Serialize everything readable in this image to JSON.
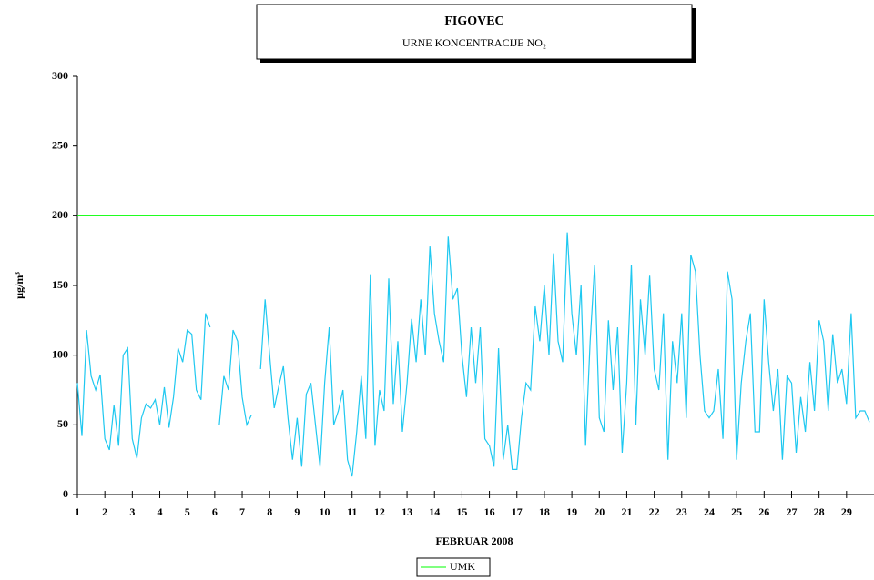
{
  "chart_data": {
    "type": "line",
    "title": "FIGOVEC",
    "subtitle": "URNE KONCENTRACIJE NO₂",
    "x_label": "FEBRUAR 2008",
    "y_label": "µg/m³",
    "xlim": [
      1,
      30
    ],
    "xticks": [
      1,
      2,
      3,
      4,
      5,
      6,
      7,
      8,
      9,
      10,
      11,
      12,
      13,
      14,
      15,
      16,
      17,
      18,
      19,
      20,
      21,
      22,
      23,
      24,
      25,
      26,
      27,
      28,
      29
    ],
    "ylim": [
      0,
      300
    ],
    "yticks": [
      0,
      50,
      100,
      150,
      200,
      250,
      300
    ],
    "threshold": {
      "name": "UMK",
      "value": 200,
      "color": "#00ff00"
    },
    "x": [
      1,
      1.1667,
      1.3333,
      1.5,
      1.6667,
      1.8333,
      2,
      2.1667,
      2.3333,
      2.5,
      2.6667,
      2.8333,
      3,
      3.1667,
      3.3333,
      3.5,
      3.6667,
      3.8333,
      4,
      4.1667,
      4.3333,
      4.5,
      4.6667,
      4.8333,
      5,
      5.1667,
      5.3333,
      5.5,
      5.6667,
      5.8333,
      6,
      6.1667,
      6.3333,
      6.5,
      6.6667,
      6.8333,
      7,
      7.1667,
      7.3333,
      7.5,
      7.6667,
      7.8333,
      8,
      8.1667,
      8.3333,
      8.5,
      8.6667,
      8.8333,
      9,
      9.1667,
      9.3333,
      9.5,
      9.6667,
      9.8333,
      10,
      10.1667,
      10.3333,
      10.5,
      10.6667,
      10.8333,
      11,
      11.1667,
      11.3333,
      11.5,
      11.6667,
      11.8333,
      12,
      12.1667,
      12.3333,
      12.5,
      12.6667,
      12.8333,
      13,
      13.1667,
      13.3333,
      13.5,
      13.6667,
      13.8333,
      14,
      14.1667,
      14.3333,
      14.5,
      14.6667,
      14.8333,
      15,
      15.1667,
      15.3333,
      15.5,
      15.6667,
      15.8333,
      16,
      16.1667,
      16.3333,
      16.5,
      16.6667,
      16.8333,
      17,
      17.1667,
      17.3333,
      17.5,
      17.6667,
      17.8333,
      18,
      18.1667,
      18.3333,
      18.5,
      18.6667,
      18.8333,
      19,
      19.1667,
      19.3333,
      19.5,
      19.6667,
      19.8333,
      20,
      20.1667,
      20.3333,
      20.5,
      20.6667,
      20.8333,
      21,
      21.1667,
      21.3333,
      21.5,
      21.6667,
      21.8333,
      22,
      22.1667,
      22.3333,
      22.5,
      22.6667,
      22.8333,
      23,
      23.1667,
      23.3333,
      23.5,
      23.6667,
      23.8333,
      24,
      24.1667,
      24.3333,
      24.5,
      24.6667,
      24.8333,
      25,
      25.1667,
      25.3333,
      25.5,
      25.6667,
      25.8333,
      26,
      26.1667,
      26.3333,
      26.5,
      26.6667,
      26.8333,
      27,
      27.1667,
      27.3333,
      27.5,
      27.6667,
      27.8333,
      28,
      28.1667,
      28.3333,
      28.5,
      28.6667,
      28.8333,
      29,
      29.1667,
      29.3333,
      29.5,
      29.6667,
      29.8333
    ],
    "series": [
      {
        "color": "#1ec8f0",
        "values": [
          80,
          42,
          118,
          85,
          75,
          86,
          40,
          32,
          64,
          35,
          100,
          105,
          40,
          26,
          55,
          65,
          62,
          68,
          50,
          77,
          48,
          70,
          105,
          95,
          118,
          115,
          75,
          68,
          130,
          120,
          null,
          50,
          85,
          75,
          118,
          110,
          70,
          50,
          57,
          null,
          90,
          140,
          100,
          62,
          78,
          92,
          55,
          25,
          55,
          20,
          72,
          80,
          50,
          20,
          80,
          120,
          50,
          60,
          75,
          25,
          13,
          45,
          85,
          40,
          158,
          35,
          75,
          60,
          155,
          65,
          110,
          45,
          80,
          126,
          95,
          140,
          100,
          178,
          130,
          110,
          95,
          185,
          140,
          148,
          100,
          70,
          120,
          80,
          120,
          40,
          35,
          20,
          105,
          25,
          50,
          18,
          18,
          55,
          80,
          75,
          135,
          110,
          150,
          100,
          173,
          110,
          95,
          188,
          130,
          100,
          150,
          35,
          110,
          165,
          55,
          45,
          125,
          75,
          120,
          30,
          80,
          165,
          50,
          140,
          100,
          157,
          90,
          75,
          130,
          25,
          110,
          80,
          130,
          55,
          172,
          160,
          100,
          60,
          55,
          60,
          90,
          40,
          160,
          140,
          25,
          80,
          110,
          130,
          45,
          45,
          140,
          95,
          60,
          90,
          25,
          85,
          80,
          30,
          70,
          45,
          95,
          60,
          125,
          110,
          60,
          115,
          80,
          90,
          65,
          130,
          55,
          60,
          60,
          52
        ]
      }
    ]
  }
}
